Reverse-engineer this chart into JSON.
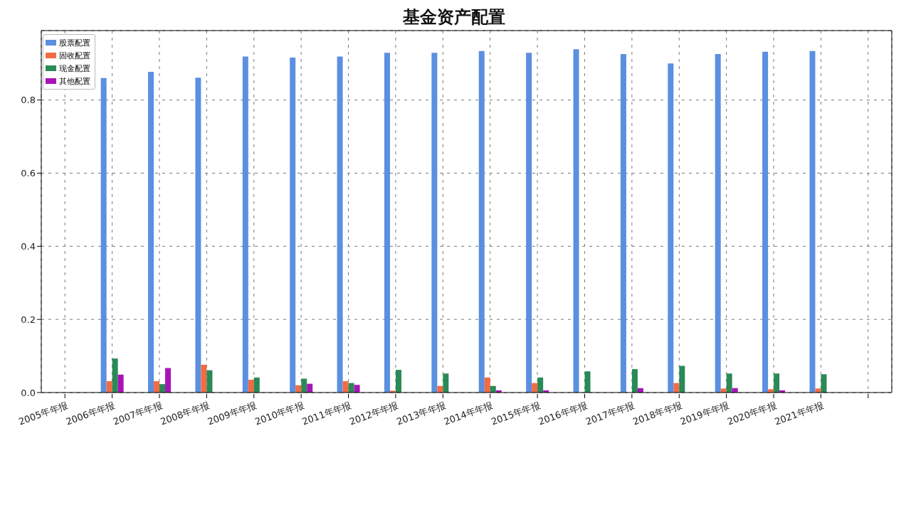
{
  "chart_data": {
    "type": "bar",
    "title": "基金资产配置",
    "categories": [
      "2005年年报",
      "2006年年报",
      "2007年年报",
      "2008年年报",
      "2009年年报",
      "2010年年报",
      "2011年年报",
      "2012年年报",
      "2013年年报",
      "2014年年报",
      "2015年年报",
      "2016年年报",
      "2017年年报",
      "2018年年报",
      "2019年年报",
      "2020年年报",
      "2021年年报",
      null
    ],
    "series": [
      {
        "name": "股票配置",
        "color": "#5b8fe0",
        "values": [
          null,
          0.86,
          0.877,
          0.861,
          0.919,
          0.916,
          0.919,
          0.929,
          0.929,
          0.934,
          0.929,
          0.939,
          0.926,
          0.9,
          0.926,
          0.932,
          0.934,
          null
        ]
      },
      {
        "name": "固收配置",
        "color": "#f26b43",
        "values": [
          null,
          0.031,
          0.031,
          0.076,
          0.035,
          0.02,
          0.031,
          0.005,
          0.018,
          0.041,
          0.026,
          0,
          0,
          0.026,
          0.011,
          0.009,
          0.011,
          null
        ]
      },
      {
        "name": "现金配置",
        "color": "#2a8a57",
        "values": [
          null,
          0.093,
          0.023,
          0.061,
          0.041,
          0.038,
          0.026,
          0.062,
          0.052,
          0.018,
          0.041,
          0.058,
          0.064,
          0.073,
          0.052,
          0.052,
          0.05,
          null
        ]
      },
      {
        "name": "其他配置",
        "color": "#a914b8",
        "values": [
          null,
          0.049,
          0.067,
          null,
          null,
          0.024,
          0.021,
          null,
          null,
          0.006,
          0.006,
          0,
          0.012,
          0,
          0.012,
          0.006,
          null,
          null
        ]
      }
    ],
    "ylim": [
      0,
      0.99
    ],
    "yticks": [
      {
        "value": 0,
        "label": "0.0"
      },
      {
        "value": 0.2,
        "label": "0.2"
      },
      {
        "value": 0.4,
        "label": "0.4"
      },
      {
        "value": 0.6,
        "label": "0.6"
      },
      {
        "value": 0.8,
        "label": "0.8"
      }
    ],
    "grid": true,
    "legend": "top left"
  }
}
